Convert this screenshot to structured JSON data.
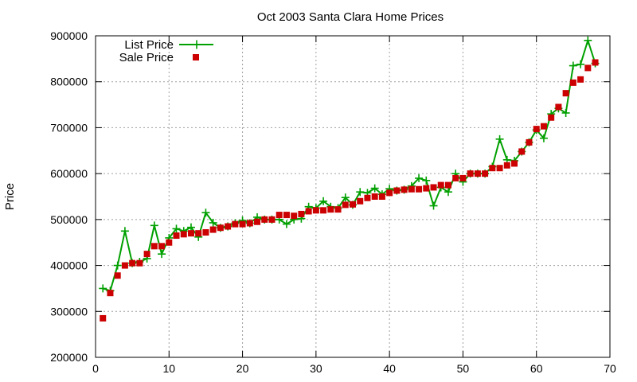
{
  "chart_data": {
    "type": "line",
    "title": "Oct 2003 Santa Clara Home Prices",
    "xlabel": "",
    "ylabel": "Price",
    "xlim": [
      0,
      70
    ],
    "ylim": [
      200000,
      900000
    ],
    "x_ticks": [
      0,
      10,
      20,
      30,
      40,
      50,
      60,
      70
    ],
    "y_ticks": [
      200000,
      300000,
      400000,
      500000,
      600000,
      700000,
      800000,
      900000
    ],
    "grid": true,
    "legend_position": "top-left",
    "x": [
      1,
      2,
      3,
      4,
      5,
      6,
      7,
      8,
      9,
      10,
      11,
      12,
      13,
      14,
      15,
      16,
      17,
      18,
      19,
      20,
      21,
      22,
      23,
      24,
      25,
      26,
      27,
      28,
      29,
      30,
      31,
      32,
      33,
      34,
      35,
      36,
      37,
      38,
      39,
      40,
      41,
      42,
      43,
      44,
      45,
      46,
      47,
      48,
      49,
      50,
      51,
      52,
      53,
      54,
      55,
      56,
      57,
      58,
      59,
      60,
      61,
      62,
      63,
      64,
      65,
      66,
      67,
      68
    ],
    "series": [
      {
        "name": "List Price",
        "style": "lines-points",
        "color": "#00a000",
        "values": [
          350000,
          345000,
          400000,
          475000,
          405000,
          408000,
          415000,
          487000,
          425000,
          460000,
          480000,
          475000,
          483000,
          462000,
          515000,
          493000,
          482000,
          485000,
          492000,
          498000,
          492000,
          505000,
          500000,
          500000,
          500000,
          490000,
          500000,
          502000,
          528000,
          525000,
          540000,
          528000,
          525000,
          548000,
          532000,
          560000,
          558000,
          568000,
          555000,
          567000,
          563000,
          565000,
          573000,
          590000,
          585000,
          530000,
          570000,
          560000,
          600000,
          582000,
          600000,
          600000,
          600000,
          615000,
          675000,
          630000,
          628000,
          648000,
          668000,
          695000,
          677000,
          730000,
          742000,
          732000,
          835000,
          838000,
          890000,
          840000
        ]
      },
      {
        "name": "Sale Price",
        "style": "points",
        "color": "#cc0000",
        "values": [
          285000,
          340000,
          378000,
          400000,
          405000,
          405000,
          425000,
          442000,
          442000,
          450000,
          465000,
          468000,
          470000,
          470000,
          472000,
          478000,
          482000,
          485000,
          490000,
          490000,
          492000,
          495000,
          500000,
          500000,
          510000,
          510000,
          508000,
          512000,
          518000,
          520000,
          520000,
          522000,
          522000,
          532000,
          533000,
          540000,
          547000,
          550000,
          550000,
          558000,
          563000,
          565000,
          566000,
          566000,
          568000,
          570000,
          575000,
          575000,
          590000,
          590000,
          600000,
          600000,
          600000,
          612000,
          612000,
          618000,
          622000,
          648000,
          668000,
          697000,
          703000,
          722000,
          745000,
          775000,
          798000,
          805000,
          830000,
          842000
        ]
      }
    ]
  }
}
